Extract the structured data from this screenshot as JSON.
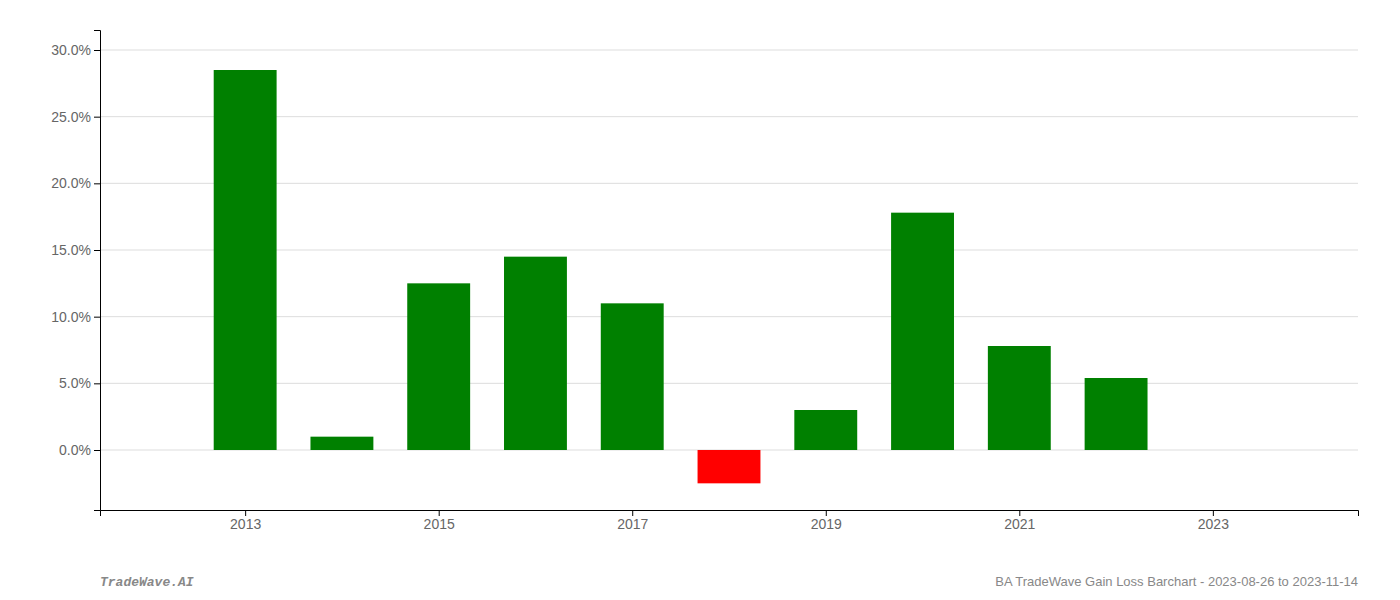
{
  "chart_data": {
    "type": "bar",
    "x": [
      2013,
      2014,
      2015,
      2016,
      2017,
      2018,
      2019,
      2020,
      2021,
      2022
    ],
    "values": [
      0.285,
      0.01,
      0.125,
      0.145,
      0.11,
      -0.025,
      0.03,
      0.178,
      0.078,
      0.054
    ],
    "colors": [
      "#008000",
      "#008000",
      "#008000",
      "#008000",
      "#008000",
      "#ff0000",
      "#008000",
      "#008000",
      "#008000",
      "#008000"
    ],
    "xlim": [
      2011.5,
      2024.5
    ],
    "xticks": [
      2013,
      2015,
      2017,
      2019,
      2021,
      2023
    ],
    "ylim": [
      -0.045,
      0.315
    ],
    "yticks": [
      {
        "value": 0.0,
        "label": "0.0%"
      },
      {
        "value": 0.05,
        "label": "5.0%"
      },
      {
        "value": 0.1,
        "label": "10.0%"
      },
      {
        "value": 0.15,
        "label": "15.0%"
      },
      {
        "value": 0.2,
        "label": "20.0%"
      },
      {
        "value": 0.25,
        "label": "25.0%"
      },
      {
        "value": 0.3,
        "label": "30.0%"
      }
    ],
    "grid": true,
    "annotations": [
      "TradeWave.AI",
      "BA TradeWave Gain Loss Barchart - 2023-08-26 to 2023-11-14"
    ]
  }
}
